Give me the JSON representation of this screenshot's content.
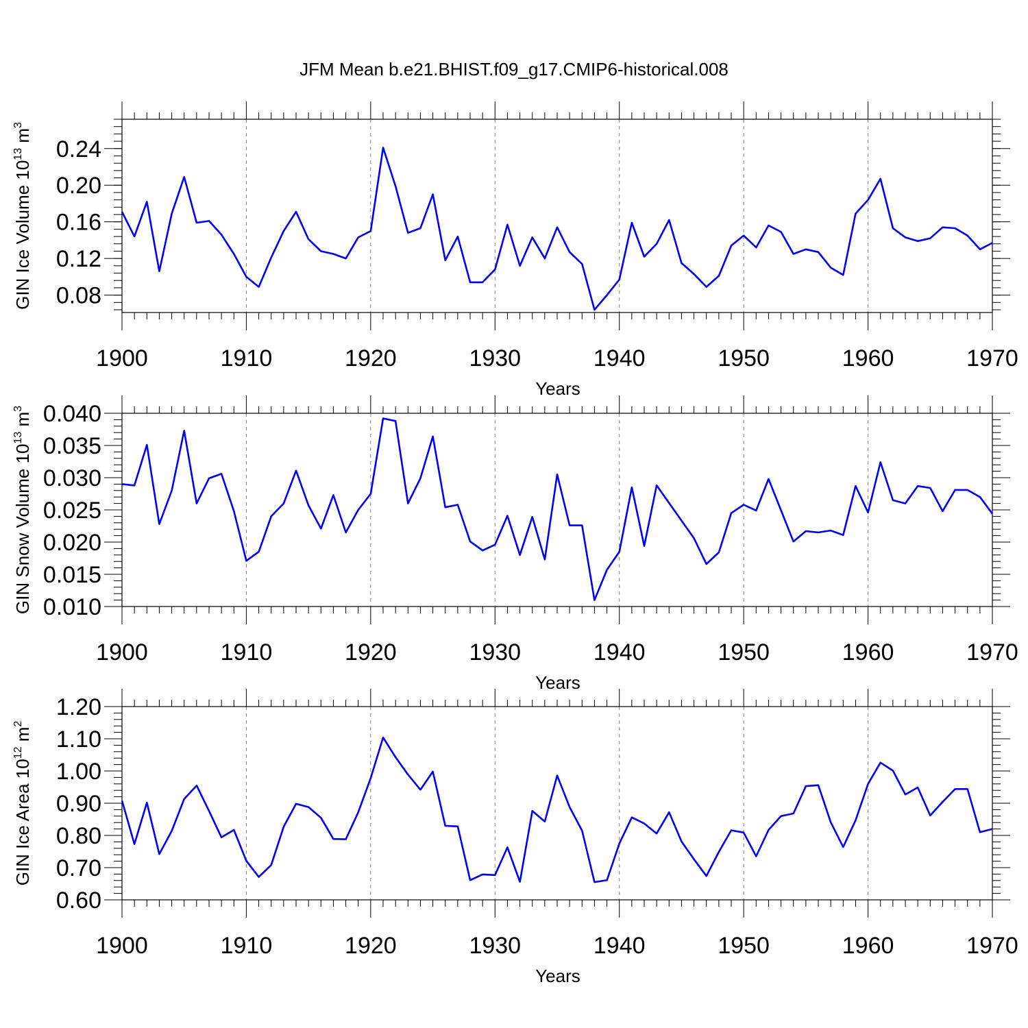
{
  "title": "JFM Mean b.e21.BHIST.f09_g17.CMIP6-historical.008",
  "chart_data": [
    {
      "type": "line",
      "ylabel": "GIN Ice Volume 10",
      "ylabel_exp": "13",
      "ylabel_unit": " m",
      "ylabel_unit_exp": "3",
      "xlabel": "Years",
      "xlim": [
        1900,
        1970
      ],
      "ylim": [
        0.061,
        0.272
      ],
      "xticks": [
        1900,
        1910,
        1920,
        1930,
        1940,
        1950,
        1960,
        1970
      ],
      "yticks": [
        0.08,
        0.12,
        0.16,
        0.2,
        0.24
      ],
      "ytick_labels": [
        "0.08",
        "0.12",
        "0.16",
        "0.20",
        "0.24"
      ],
      "x": [
        1900,
        1901,
        1902,
        1903,
        1904,
        1905,
        1906,
        1907,
        1908,
        1909,
        1910,
        1911,
        1912,
        1913,
        1914,
        1915,
        1916,
        1917,
        1918,
        1919,
        1920,
        1921,
        1922,
        1923,
        1924,
        1925,
        1926,
        1927,
        1928,
        1929,
        1930,
        1931,
        1932,
        1933,
        1934,
        1935,
        1936,
        1937,
        1938,
        1939,
        1940,
        1941,
        1942,
        1943,
        1944,
        1945,
        1946,
        1947,
        1948,
        1949,
        1950,
        1951,
        1952,
        1953,
        1954,
        1955,
        1956,
        1957,
        1958,
        1959,
        1960,
        1961,
        1962,
        1963,
        1964,
        1965,
        1966,
        1967,
        1968,
        1969,
        1970
      ],
      "values": [
        0.171,
        0.144,
        0.182,
        0.106,
        0.169,
        0.209,
        0.159,
        0.161,
        0.146,
        0.125,
        0.1,
        0.089,
        0.121,
        0.15,
        0.171,
        0.141,
        0.128,
        0.125,
        0.12,
        0.143,
        0.15,
        0.241,
        0.199,
        0.148,
        0.153,
        0.19,
        0.118,
        0.144,
        0.094,
        0.094,
        0.108,
        0.157,
        0.112,
        0.143,
        0.12,
        0.154,
        0.127,
        0.114,
        0.064,
        0.08,
        0.097,
        0.159,
        0.122,
        0.136,
        0.162,
        0.115,
        0.103,
        0.089,
        0.101,
        0.134,
        0.145,
        0.132,
        0.156,
        0.149,
        0.125,
        0.13,
        0.127,
        0.11,
        0.102,
        0.169,
        0.184,
        0.207,
        0.153,
        0.143,
        0.139,
        0.142,
        0.154,
        0.153,
        0.145,
        0.13,
        0.137
      ]
    },
    {
      "type": "line",
      "ylabel": "GIN Snow Volume 10",
      "ylabel_exp": "13",
      "ylabel_unit": " m",
      "ylabel_unit_exp": "3",
      "xlabel": "Years",
      "xlim": [
        1900,
        1970
      ],
      "ylim": [
        0.01,
        0.04
      ],
      "xticks": [
        1900,
        1910,
        1920,
        1930,
        1940,
        1950,
        1960,
        1970
      ],
      "yticks": [
        0.01,
        0.015,
        0.02,
        0.025,
        0.03,
        0.035,
        0.04
      ],
      "ytick_labels": [
        "0.010",
        "0.015",
        "0.020",
        "0.025",
        "0.030",
        "0.035",
        "0.040"
      ],
      "x": [
        1900,
        1901,
        1902,
        1903,
        1904,
        1905,
        1906,
        1907,
        1908,
        1909,
        1910,
        1911,
        1912,
        1913,
        1914,
        1915,
        1916,
        1917,
        1918,
        1919,
        1920,
        1921,
        1922,
        1923,
        1924,
        1925,
        1926,
        1927,
        1928,
        1929,
        1930,
        1931,
        1932,
        1933,
        1934,
        1935,
        1936,
        1937,
        1938,
        1939,
        1940,
        1941,
        1942,
        1943,
        1946,
        1947,
        1948,
        1949,
        1950,
        1951,
        1952,
        1954,
        1955,
        1956,
        1957,
        1958,
        1959,
        1960,
        1961,
        1962,
        1963,
        1964,
        1965,
        1966,
        1967,
        1968,
        1969,
        1970
      ],
      "values": [
        0.029,
        0.0288,
        0.0351,
        0.0228,
        0.028,
        0.0373,
        0.026,
        0.0299,
        0.0306,
        0.0248,
        0.0171,
        0.0185,
        0.024,
        0.026,
        0.0311,
        0.0257,
        0.0221,
        0.0273,
        0.0215,
        0.025,
        0.0275,
        0.0392,
        0.0388,
        0.026,
        0.0299,
        0.0364,
        0.0254,
        0.0258,
        0.0201,
        0.0187,
        0.0196,
        0.0241,
        0.018,
        0.0239,
        0.0173,
        0.0305,
        0.0226,
        0.0226,
        0.011,
        0.0157,
        0.0185,
        0.0285,
        0.0194,
        0.0288,
        0.0206,
        0.0166,
        0.0184,
        0.0245,
        0.0258,
        0.0249,
        0.0298,
        0.0201,
        0.0217,
        0.0215,
        0.0218,
        0.0211,
        0.0287,
        0.0246,
        0.0324,
        0.0265,
        0.026,
        0.0287,
        0.0284,
        0.0248,
        0.0281,
        0.0281,
        0.027,
        0.0244
      ]
    },
    {
      "type": "line",
      "ylabel": "GIN Ice Area 10",
      "ylabel_exp": "12",
      "ylabel_unit": " m",
      "ylabel_unit_exp": "2",
      "xlabel": "Years",
      "xlim": [
        1900,
        1970
      ],
      "ylim": [
        0.6,
        1.2
      ],
      "xticks": [
        1900,
        1910,
        1920,
        1930,
        1940,
        1950,
        1960,
        1970
      ],
      "yticks": [
        0.6,
        0.7,
        0.8,
        0.9,
        1.0,
        1.1,
        1.2
      ],
      "ytick_labels": [
        "0.60",
        "0.70",
        "0.80",
        "0.90",
        "1.00",
        "1.10",
        "1.20"
      ],
      "x": [
        1900,
        1901,
        1902,
        1903,
        1904,
        1905,
        1906,
        1907,
        1908,
        1909,
        1910,
        1911,
        1912,
        1913,
        1914,
        1915,
        1916,
        1917,
        1918,
        1919,
        1920,
        1921,
        1922,
        1923,
        1924,
        1925,
        1926,
        1927,
        1928,
        1929,
        1930,
        1931,
        1932,
        1933,
        1934,
        1935,
        1936,
        1937,
        1938,
        1939,
        1940,
        1941,
        1942,
        1943,
        1944,
        1945,
        1946,
        1947,
        1948,
        1949,
        1950,
        1951,
        1952,
        1953,
        1954,
        1955,
        1956,
        1957,
        1958,
        1959,
        1960,
        1961,
        1962,
        1963,
        1964,
        1965,
        1966,
        1967,
        1968,
        1969,
        1970
      ],
      "values": [
        0.908,
        0.773,
        0.902,
        0.742,
        0.814,
        0.913,
        0.955,
        0.876,
        0.794,
        0.817,
        0.721,
        0.671,
        0.708,
        0.827,
        0.898,
        0.888,
        0.855,
        0.789,
        0.788,
        0.872,
        0.978,
        1.104,
        1.043,
        0.989,
        0.942,
        0.998,
        0.83,
        0.828,
        0.661,
        0.679,
        0.677,
        0.763,
        0.656,
        0.876,
        0.843,
        0.986,
        0.888,
        0.815,
        0.655,
        0.661,
        0.775,
        0.856,
        0.837,
        0.806,
        0.872,
        0.781,
        0.726,
        0.674,
        0.749,
        0.816,
        0.809,
        0.735,
        0.817,
        0.86,
        0.868,
        0.953,
        0.956,
        0.841,
        0.764,
        0.847,
        0.96,
        1.026,
        1.001,
        0.927,
        0.949,
        0.862,
        0.904,
        0.944,
        0.944,
        0.81,
        0.82
      ]
    }
  ]
}
